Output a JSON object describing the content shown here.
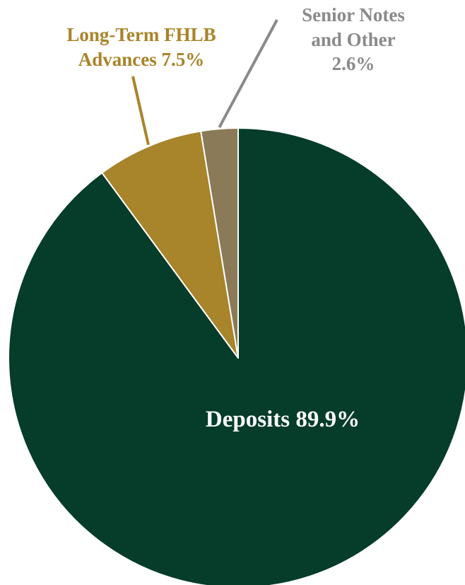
{
  "chart_data": {
    "type": "pie",
    "title": "",
    "start_angle_deg": 0,
    "direction": "clockwise",
    "slices": [
      {
        "label": "Deposits",
        "value": 89.9,
        "display": "Deposits 89.9%",
        "color": "#053c2a"
      },
      {
        "label": "Long-Term FHLB Advances",
        "value": 7.5,
        "display_lines": [
          "Long-Term FHLB",
          "Advances 7.5%"
        ],
        "color": "#a8842a"
      },
      {
        "label": "Senior Notes and Other",
        "value": 2.6,
        "display_lines": [
          "Senior Notes",
          "and Other",
          "2.6%"
        ],
        "color": "#8a7a57"
      }
    ],
    "leader_line_colors": [
      "#a8842a",
      "#8a8a8a"
    ],
    "label_colors": {
      "Deposits": "#ffffff",
      "Long-Term FHLB Advances": "#a8842a",
      "Senior Notes and Other": "#8a8a8a"
    }
  }
}
